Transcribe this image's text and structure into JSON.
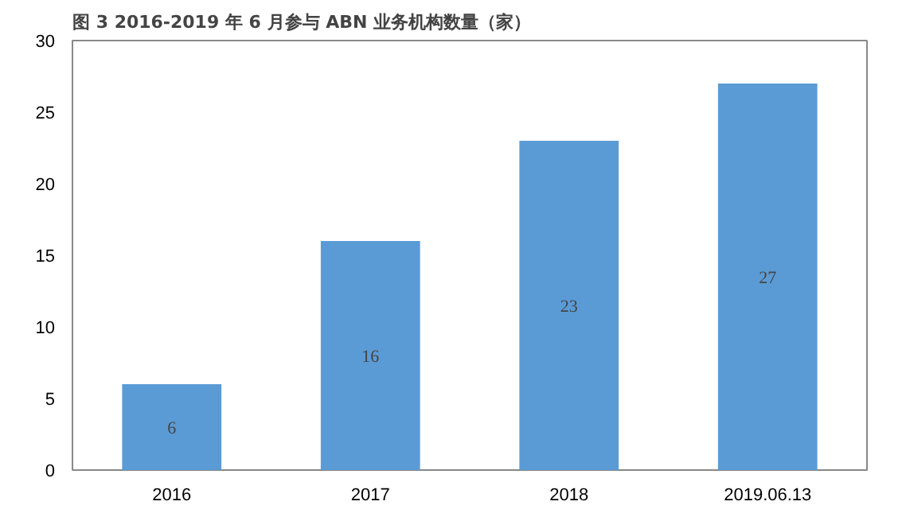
{
  "chart_data": {
    "type": "bar",
    "title": "图 3 2016-2019 年 6 月参与 ABN 业务机构数量（家）",
    "categories": [
      "2016",
      "2017",
      "2018",
      "2019.06.13"
    ],
    "values": [
      6,
      16,
      23,
      27
    ],
    "color": "#5b9bd5",
    "ylim": [
      0,
      30
    ],
    "yticks": [
      0,
      5,
      10,
      15,
      20,
      25,
      30
    ],
    "grid": false,
    "data_labels": true
  }
}
